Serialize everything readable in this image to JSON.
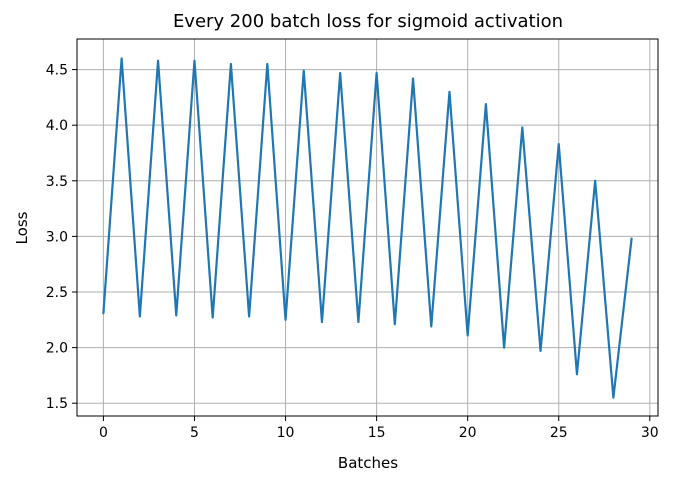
{
  "chart_data": {
    "type": "line",
    "title": "Every 200 batch loss for sigmoid activation",
    "xlabel": "Batches",
    "ylabel": "Loss",
    "xlim": [
      -1.45,
      30.45
    ],
    "ylim": [
      1.385,
      4.775
    ],
    "xticks": [
      0,
      5,
      10,
      15,
      20,
      25,
      30
    ],
    "xtick_labels": [
      "0",
      "5",
      "10",
      "15",
      "20",
      "25",
      "30"
    ],
    "yticks": [
      1.5,
      2.0,
      2.5,
      3.0,
      3.5,
      4.0,
      4.5
    ],
    "ytick_labels": [
      "1.5",
      "2.0",
      "2.5",
      "3.0",
      "3.5",
      "4.0",
      "4.5"
    ],
    "grid": true,
    "series": [
      {
        "color": "#1f77b4",
        "x": [
          0,
          1,
          2,
          3,
          4,
          5,
          6,
          7,
          8,
          9,
          10,
          11,
          12,
          13,
          14,
          15,
          16,
          17,
          18,
          19,
          20,
          21,
          22,
          23,
          24,
          25,
          26,
          27,
          28,
          29
        ],
        "y": [
          2.31,
          4.6,
          2.28,
          4.58,
          2.29,
          4.58,
          2.27,
          4.55,
          2.28,
          4.55,
          2.25,
          4.49,
          2.23,
          4.47,
          2.23,
          4.47,
          2.21,
          4.42,
          2.19,
          4.3,
          2.11,
          4.19,
          2.0,
          3.98,
          1.97,
          3.83,
          1.76,
          3.5,
          1.55,
          2.98
        ]
      }
    ]
  }
}
